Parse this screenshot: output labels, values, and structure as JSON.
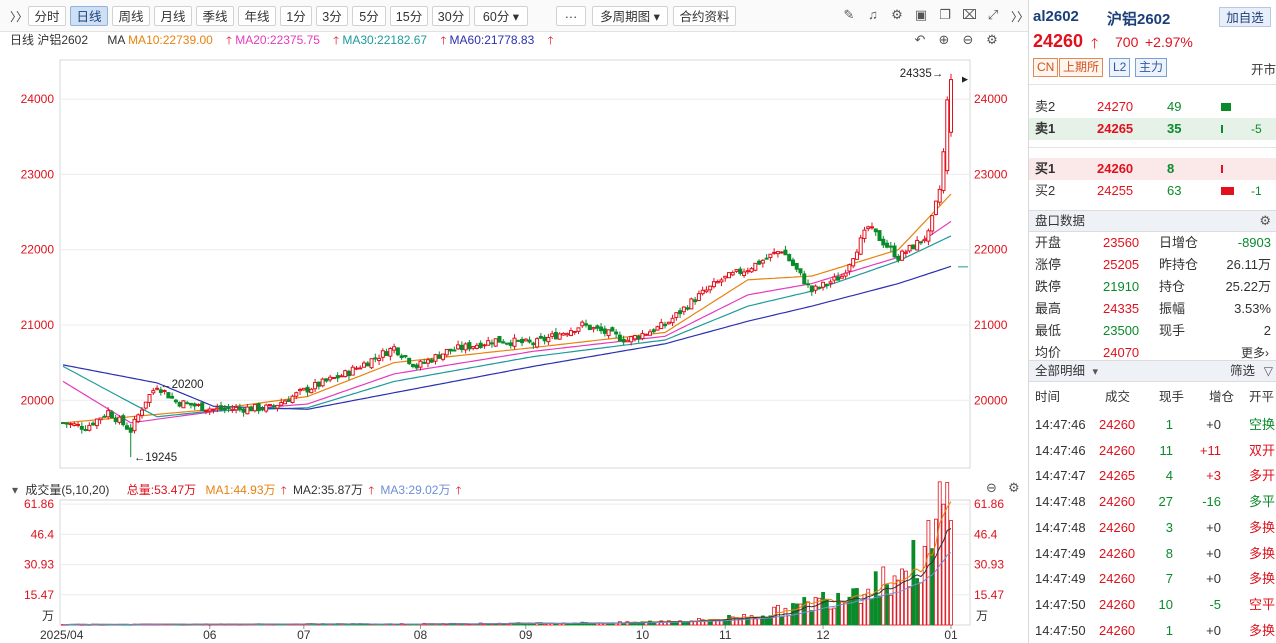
{
  "toolbar": {
    "collapse": "〉〉",
    "periods": [
      "分时",
      "日线",
      "周线",
      "月线",
      "季线",
      "年线",
      "1分",
      "3分",
      "5分",
      "15分",
      "30分",
      "60分"
    ],
    "active_period": "日线",
    "more": "···",
    "multi_period": "多周期图",
    "contract_info": "合约资料"
  },
  "legend": {
    "chart_label": "日线 沪铝2602",
    "ma_label": "MA",
    "ma10": "MA10:22739.00",
    "ma20": "MA20:22375.75",
    "ma30": "MA30:22182.67",
    "ma60": "MA60:21778.83"
  },
  "vol_legend": {
    "label": "成交量(5,10,20)",
    "total": "总量:53.47万",
    "ma1": "MA1:44.93万",
    "ma2": "MA2:35.87万",
    "ma3": "MA3:29.02万"
  },
  "colors": {
    "up": "#e0111c",
    "down": "#098b2a",
    "ma10": "#e8820e",
    "ma20": "#e53bbd",
    "ma30": "#1e9a9a",
    "ma60": "#2b31b0"
  },
  "chart_data": {
    "type": "candlestick",
    "y_ticks": [
      20000,
      21000,
      22000,
      23000,
      24000
    ],
    "ylim": [
      19100,
      24520
    ],
    "x_labels": [
      "2025/04",
      "06",
      "07",
      "08",
      "09",
      "10",
      "11",
      "12",
      "01"
    ],
    "x_label_days": [
      0,
      39,
      64,
      95,
      123,
      154,
      176,
      202,
      236
    ],
    "annotations": [
      {
        "text": "20200",
        "day": 25,
        "value": 20200,
        "direction": "left"
      },
      {
        "text": "19245",
        "day": 18,
        "value": 19245,
        "direction": "left"
      },
      {
        "text": "24335",
        "day": 235,
        "value": 24335,
        "direction": "right"
      }
    ],
    "keypoints": [
      [
        0,
        19700
      ],
      [
        6,
        19640
      ],
      [
        12,
        19850
      ],
      [
        18,
        19600
      ],
      [
        22,
        20000
      ],
      [
        25,
        20200
      ],
      [
        30,
        19980
      ],
      [
        40,
        19880
      ],
      [
        55,
        19900
      ],
      [
        65,
        20150
      ],
      [
        75,
        20350
      ],
      [
        88,
        20700
      ],
      [
        94,
        20450
      ],
      [
        102,
        20650
      ],
      [
        115,
        20800
      ],
      [
        125,
        20750
      ],
      [
        138,
        21000
      ],
      [
        150,
        20800
      ],
      [
        160,
        21000
      ],
      [
        168,
        21350
      ],
      [
        175,
        21600
      ],
      [
        182,
        21750
      ],
      [
        191,
        22000
      ],
      [
        199,
        21450
      ],
      [
        207,
        21650
      ],
      [
        214,
        22300
      ],
      [
        222,
        21900
      ],
      [
        230,
        22200
      ],
      [
        233,
        22800
      ],
      [
        236,
        24260
      ]
    ],
    "ma_anchors": {
      "ma10": [
        [
          0,
          19700
        ],
        [
          40,
          19880
        ],
        [
          65,
          20050
        ],
        [
          88,
          20500
        ],
        [
          125,
          20700
        ],
        [
          160,
          20900
        ],
        [
          182,
          21600
        ],
        [
          199,
          21650
        ],
        [
          222,
          22000
        ],
        [
          236,
          22739
        ]
      ],
      "ma20": [
        [
          0,
          20250
        ],
        [
          18,
          19700
        ],
        [
          40,
          19850
        ],
        [
          65,
          19950
        ],
        [
          88,
          20350
        ],
        [
          125,
          20650
        ],
        [
          160,
          20850
        ],
        [
          182,
          21400
        ],
        [
          199,
          21550
        ],
        [
          222,
          21900
        ],
        [
          236,
          22375.75
        ]
      ],
      "ma30": [
        [
          0,
          20450
        ],
        [
          25,
          19780
        ],
        [
          40,
          19860
        ],
        [
          65,
          19900
        ],
        [
          88,
          20250
        ],
        [
          125,
          20580
        ],
        [
          160,
          20800
        ],
        [
          182,
          21250
        ],
        [
          199,
          21450
        ],
        [
          222,
          21850
        ],
        [
          236,
          22182.67
        ]
      ],
      "ma60": [
        [
          0,
          20470
        ],
        [
          25,
          20230
        ],
        [
          40,
          19920
        ],
        [
          65,
          19880
        ],
        [
          88,
          20100
        ],
        [
          125,
          20450
        ],
        [
          160,
          20750
        ],
        [
          182,
          21050
        ],
        [
          199,
          21250
        ],
        [
          222,
          21550
        ],
        [
          236,
          21778.83
        ]
      ]
    },
    "volume": {
      "y_ticks": [
        15.47,
        30.93,
        46.4,
        61.86
      ],
      "unit": "万",
      "ylim": [
        0,
        64
      ],
      "keypoints": [
        [
          0,
          0.3
        ],
        [
          100,
          0.6
        ],
        [
          150,
          1.2
        ],
        [
          170,
          2.5
        ],
        [
          185,
          5
        ],
        [
          195,
          9
        ],
        [
          205,
          15
        ],
        [
          215,
          22
        ],
        [
          225,
          28
        ],
        [
          232,
          45
        ],
        [
          234,
          65
        ],
        [
          236,
          53.47
        ]
      ]
    }
  },
  "quote": {
    "code": "al2602",
    "name": "沪铝2602",
    "add_watch": "加自选",
    "price": "24260",
    "change": "700",
    "change_pct": "+2.97%",
    "tags": [
      "CN",
      "上期所",
      "L2",
      "主力"
    ],
    "status": "开市"
  },
  "order_book": [
    {
      "label": "卖2",
      "price": "24270",
      "vol": "49",
      "chg": "",
      "bar": 0.45
    },
    {
      "label": "卖1",
      "price": "24265",
      "vol": "35",
      "chg": "-5",
      "bar": 0.1
    },
    {
      "label": "买1",
      "price": "24260",
      "vol": "8",
      "chg": "",
      "bar": 0.02
    },
    {
      "label": "买2",
      "price": "24255",
      "vol": "63",
      "chg": "-1",
      "bar": 0.6
    }
  ],
  "market": {
    "title": "盘口数据",
    "rows": [
      {
        "k1": "开盘",
        "v1": "23560",
        "k2": "日增仓",
        "v2": "-8903"
      },
      {
        "k1": "涨停",
        "v1": "25205",
        "k2": "昨持仓",
        "v2": "26.11万"
      },
      {
        "k1": "跌停",
        "v1": "21910",
        "k2": "持仓",
        "v2": "25.22万"
      },
      {
        "k1": "最高",
        "v1": "24335",
        "k2": "振幅",
        "v2": "3.53%"
      },
      {
        "k1": "最低",
        "v1": "23500",
        "k2": "现手",
        "v2": "2"
      },
      {
        "k1": "均价",
        "v1": "24070",
        "k2": "",
        "v2": ""
      }
    ],
    "more": "更多›"
  },
  "ticks": {
    "title": "全部明细",
    "filter": "筛选",
    "headers": [
      "时间",
      "成交",
      "现手",
      "增仓",
      "开平"
    ],
    "rows": [
      [
        "14:47:46",
        "24260",
        "1",
        "+0",
        "空换"
      ],
      [
        "14:47:46",
        "24260",
        "11",
        "+11",
        "双开"
      ],
      [
        "14:47:47",
        "24265",
        "4",
        "+3",
        "多开"
      ],
      [
        "14:47:48",
        "24260",
        "27",
        "-16",
        "多平"
      ],
      [
        "14:47:48",
        "24260",
        "3",
        "+0",
        "多换"
      ],
      [
        "14:47:49",
        "24260",
        "8",
        "+0",
        "多换"
      ],
      [
        "14:47:49",
        "24260",
        "7",
        "+0",
        "多换"
      ],
      [
        "14:47:50",
        "24260",
        "10",
        "-5",
        "空平"
      ],
      [
        "14:47:50",
        "24260",
        "1",
        "+0",
        "多换"
      ]
    ]
  }
}
